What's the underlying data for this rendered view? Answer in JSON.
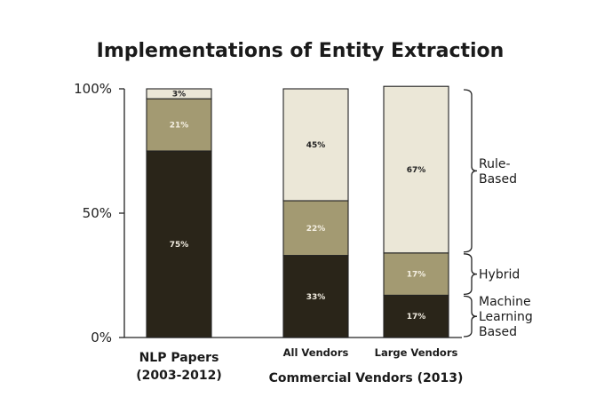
{
  "chart_data": {
    "type": "bar",
    "stacked": true,
    "title": "Implementations of Entity Extraction",
    "categories": [
      "NLP Papers\n(2003-2012)",
      "All Vendors",
      "Large Vendors"
    ],
    "group_label": "Commercial Vendors (2013)",
    "yticks": [
      "0%",
      "50%",
      "100%"
    ],
    "ylim": [
      0,
      100
    ],
    "series": [
      {
        "name": "Machine Learning Based",
        "values": [
          75,
          33,
          17
        ],
        "labels": [
          "75%",
          "33%",
          "17%"
        ],
        "color": "#2a2519",
        "label_color": "#f1ece0"
      },
      {
        "name": "Hybrid",
        "values": [
          21,
          22,
          17
        ],
        "labels": [
          "21%",
          "22%",
          "17%"
        ],
        "color": "#a39a72",
        "label_color": "#f4efe2"
      },
      {
        "name": "Rule-Based",
        "values": [
          3,
          45,
          67
        ],
        "labels": [
          "3%",
          "45%",
          "67%"
        ],
        "color": "#ebe7d7",
        "label_color": "#222222"
      }
    ],
    "brace_labels": [
      {
        "series": "Rule-Based",
        "text": [
          "Rule-",
          "Based"
        ]
      },
      {
        "series": "Hybrid",
        "text": [
          "Hybrid"
        ]
      },
      {
        "series": "Machine Learning Based",
        "text": [
          "Machine",
          "Learning",
          "Based"
        ]
      }
    ]
  }
}
